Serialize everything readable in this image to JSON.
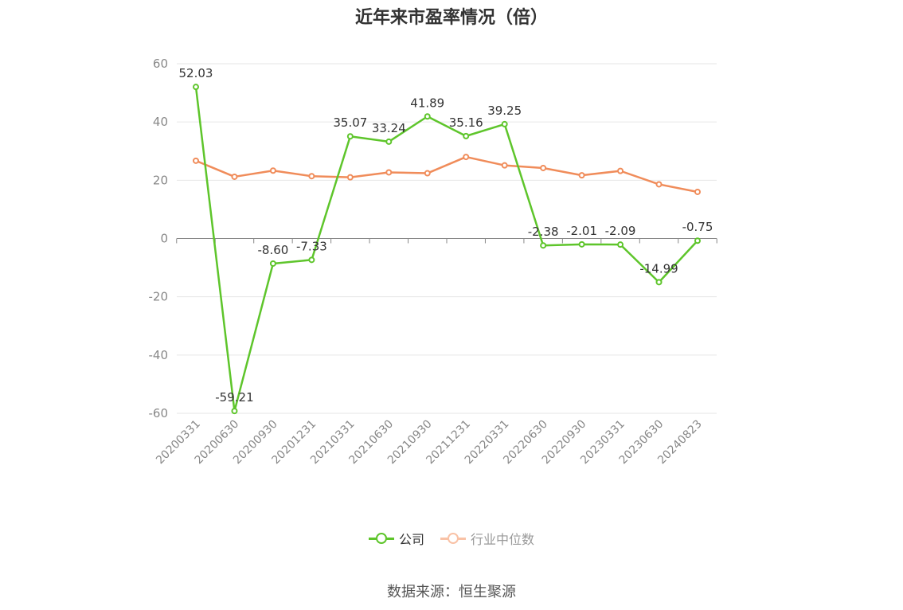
{
  "chart_data": {
    "type": "line",
    "title": "近年来市盈率情况（倍）",
    "x": [
      "20200331",
      "20200630",
      "20200930",
      "20201231",
      "20210331",
      "20210630",
      "20210930",
      "20211231",
      "20220331",
      "20220630",
      "20220930",
      "20230331",
      "20230630",
      "20240823"
    ],
    "ylim": [
      -60,
      60
    ],
    "yticks": [
      60,
      40,
      20,
      0,
      -20,
      -40,
      -60
    ],
    "grid": true,
    "legend_position": "bottom",
    "series": [
      {
        "name": "公司",
        "color": "#5ec52b",
        "values": [
          52.03,
          -59.21,
          -8.6,
          -7.33,
          35.07,
          33.24,
          41.89,
          35.16,
          39.25,
          -2.38,
          -2.01,
          -2.09,
          -14.99,
          -0.75
        ],
        "labels": [
          "52.03",
          "-59.21",
          "-8.60",
          "-7.33",
          "35.07",
          "33.24",
          "41.89",
          "35.16",
          "39.25",
          "-2.38",
          "-2.01",
          "-2.09",
          "-14.99",
          "-0.75"
        ]
      },
      {
        "name": "行业中位数",
        "color": "#f08c5a",
        "values": [
          26.7,
          21.2,
          23.3,
          21.4,
          21.0,
          22.7,
          22.4,
          28.0,
          25.1,
          24.2,
          21.7,
          23.2,
          18.6,
          16.0
        ]
      }
    ]
  },
  "legend": {
    "company_label": "公司",
    "industry_label": "行业中位数"
  },
  "source": "数据来源：恒生聚源"
}
